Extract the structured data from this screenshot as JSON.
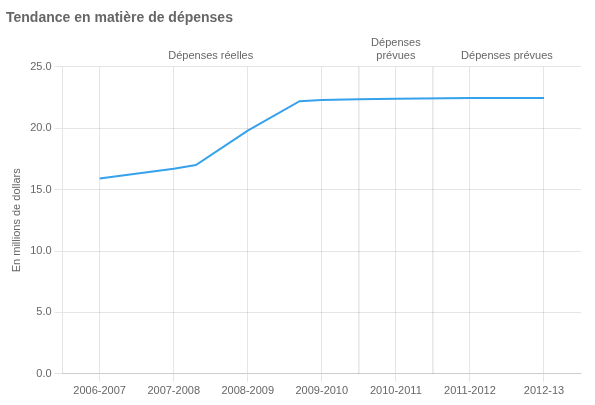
{
  "chart_data": {
    "type": "line",
    "title": "Tendance en matière de dépenses",
    "y_label": "En millions de dollars",
    "x": [
      0,
      1,
      1.3,
      2,
      2.7,
      3,
      3.5,
      4,
      5,
      6
    ],
    "values": [
      15.9,
      16.7,
      17.0,
      19.8,
      22.2,
      22.3,
      22.35,
      22.4,
      22.45,
      22.45
    ],
    "xlim": [
      -0.5,
      6.5
    ],
    "xticks": [
      {
        "value": 0,
        "label": "2006-2007"
      },
      {
        "value": 1,
        "label": "2007-2008"
      },
      {
        "value": 2,
        "label": "2008-2009"
      },
      {
        "value": 3,
        "label": "2009-2010"
      },
      {
        "value": 4,
        "label": "2010-2011"
      },
      {
        "value": 5,
        "label": "2011-2012"
      },
      {
        "value": 6,
        "label": "2012-13"
      }
    ],
    "ylim": [
      0,
      25.0
    ],
    "yticks": [
      {
        "value": 0.0,
        "label": "0.0"
      },
      {
        "value": 5.0,
        "label": "5.0"
      },
      {
        "value": 10.0,
        "label": "10.0"
      },
      {
        "value": 15.0,
        "label": "15.0"
      },
      {
        "value": 20.0,
        "label": "20.0"
      },
      {
        "value": 25.0,
        "label": "25.0"
      }
    ],
    "vlines": [
      3.5,
      4.5
    ],
    "annotations": [
      "Dépenses réelles",
      "Dépenses\nprévues",
      "Dépenses prévues"
    ],
    "grid": true
  }
}
